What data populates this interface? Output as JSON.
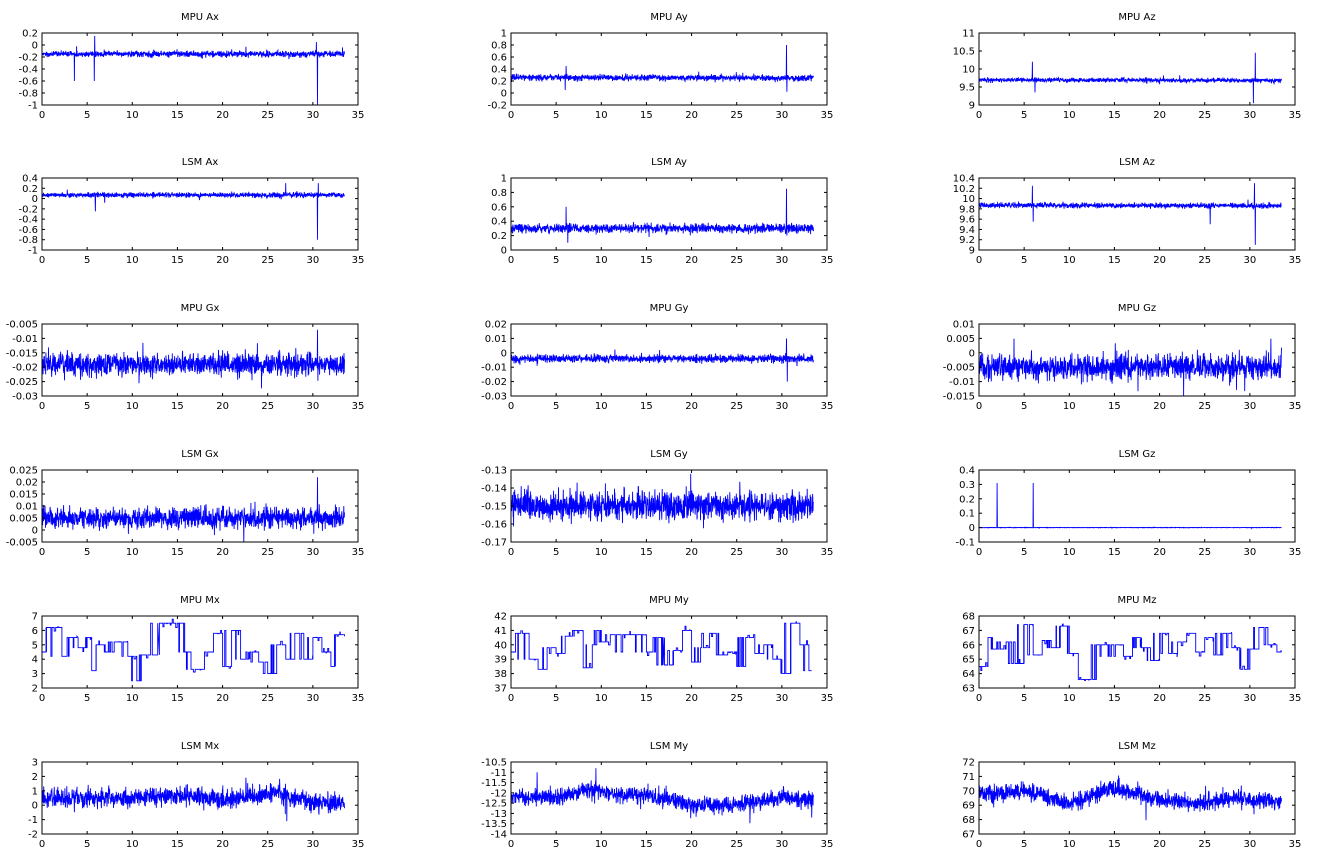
{
  "colors": {
    "series": "#0000ff",
    "axis": "#000000"
  },
  "chart_data": [
    {
      "type": "line",
      "title": "MPU Ax",
      "xlim": [
        0,
        35
      ],
      "xticks": [
        0,
        5,
        10,
        15,
        20,
        25,
        30,
        35
      ],
      "ylim": [
        -1,
        0.2
      ],
      "yticks": [
        -1,
        -0.8,
        -0.6,
        -0.4,
        -0.2,
        0,
        0.2
      ],
      "kind": "noise",
      "x_end": 33.5,
      "baseline": [
        [
          0,
          -0.15
        ],
        [
          33.5,
          -0.15
        ]
      ],
      "noise": 0.035,
      "spikes": [
        [
          3.6,
          -0.6
        ],
        [
          5.8,
          -0.6
        ],
        [
          5.85,
          0.15
        ],
        [
          30.4,
          0.05
        ],
        [
          30.5,
          -1.0
        ]
      ]
    },
    {
      "type": "line",
      "title": "MPU Ay",
      "xlim": [
        0,
        35
      ],
      "xticks": [
        0,
        5,
        10,
        15,
        20,
        25,
        30,
        35
      ],
      "ylim": [
        -0.2,
        1
      ],
      "yticks": [
        -0.2,
        0,
        0.2,
        0.4,
        0.6,
        0.8,
        1
      ],
      "kind": "noise",
      "x_end": 33.5,
      "baseline": [
        [
          0,
          0.26
        ],
        [
          33.5,
          0.25
        ]
      ],
      "noise": 0.035,
      "spikes": [
        [
          6.0,
          0.05
        ],
        [
          6.1,
          0.45
        ],
        [
          30.5,
          0.8
        ],
        [
          30.55,
          0.02
        ]
      ]
    },
    {
      "type": "line",
      "title": "MPU Az",
      "xlim": [
        0,
        35
      ],
      "xticks": [
        0,
        5,
        10,
        15,
        20,
        25,
        30,
        35
      ],
      "ylim": [
        9,
        11
      ],
      "yticks": [
        9,
        9.5,
        10,
        10.5,
        11
      ],
      "kind": "noise",
      "x_end": 33.5,
      "baseline": [
        [
          0,
          9.7
        ],
        [
          33.5,
          9.68
        ]
      ],
      "noise": 0.04,
      "spikes": [
        [
          5.9,
          10.2
        ],
        [
          6.2,
          9.35
        ],
        [
          30.4,
          9.05
        ],
        [
          30.6,
          10.45
        ]
      ]
    },
    {
      "type": "line",
      "title": "LSM Ax",
      "xlim": [
        0,
        35
      ],
      "xticks": [
        0,
        5,
        10,
        15,
        20,
        25,
        30,
        35
      ],
      "ylim": [
        -1,
        0.4
      ],
      "yticks": [
        -1,
        -0.8,
        -0.6,
        -0.4,
        -0.2,
        0,
        0.2,
        0.4
      ],
      "kind": "noise",
      "x_end": 33.5,
      "baseline": [
        [
          0,
          0.07
        ],
        [
          33.5,
          0.07
        ]
      ],
      "noise": 0.035,
      "spikes": [
        [
          5.9,
          -0.25
        ],
        [
          27,
          0.3
        ],
        [
          30.5,
          -0.8
        ],
        [
          30.6,
          0.3
        ]
      ]
    },
    {
      "type": "line",
      "title": "LSM Ay",
      "xlim": [
        0,
        35
      ],
      "xticks": [
        0,
        5,
        10,
        15,
        20,
        25,
        30,
        35
      ],
      "ylim": [
        0,
        1
      ],
      "yticks": [
        0,
        0.2,
        0.4,
        0.6,
        0.8,
        1
      ],
      "kind": "noise",
      "x_end": 33.5,
      "baseline": [
        [
          0,
          0.3
        ],
        [
          33.5,
          0.3
        ]
      ],
      "noise": 0.045,
      "spikes": [
        [
          6.1,
          0.6
        ],
        [
          6.3,
          0.1
        ],
        [
          30.5,
          0.85
        ],
        [
          30.55,
          0.2
        ]
      ]
    },
    {
      "type": "line",
      "title": "LSM Az",
      "xlim": [
        0,
        35
      ],
      "xticks": [
        0,
        5,
        10,
        15,
        20,
        25,
        30,
        35
      ],
      "ylim": [
        9,
        10.4
      ],
      "yticks": [
        9,
        9.2,
        9.4,
        9.6,
        9.8,
        10,
        10.2,
        10.4
      ],
      "kind": "noise",
      "x_end": 33.5,
      "baseline": [
        [
          0,
          9.87
        ],
        [
          33.5,
          9.86
        ]
      ],
      "noise": 0.035,
      "spikes": [
        [
          5.9,
          10.25
        ],
        [
          6.0,
          9.55
        ],
        [
          25.6,
          9.5
        ],
        [
          30.5,
          10.3
        ],
        [
          30.6,
          9.1
        ]
      ]
    },
    {
      "type": "line",
      "title": "MPU Gx",
      "xlim": [
        0,
        35
      ],
      "xticks": [
        0,
        5,
        10,
        15,
        20,
        25,
        30,
        35
      ],
      "ylim": [
        -0.03,
        -0.005
      ],
      "yticks": [
        -0.03,
        -0.025,
        -0.02,
        -0.015,
        -0.01,
        -0.005
      ],
      "kind": "noise",
      "x_end": 33.5,
      "baseline": [
        [
          0,
          -0.019
        ],
        [
          33.5,
          -0.019
        ]
      ],
      "noise": 0.0028,
      "spikes": [
        [
          30.5,
          -0.007
        ]
      ]
    },
    {
      "type": "line",
      "title": "MPU Gy",
      "xlim": [
        0,
        35
      ],
      "xticks": [
        0,
        5,
        10,
        15,
        20,
        25,
        30,
        35
      ],
      "ylim": [
        -0.03,
        0.02
      ],
      "yticks": [
        -0.03,
        -0.02,
        -0.01,
        0,
        0.01,
        0.02
      ],
      "kind": "noise",
      "x_end": 33.5,
      "baseline": [
        [
          0,
          -0.004
        ],
        [
          33.5,
          -0.004
        ]
      ],
      "noise": 0.002,
      "spikes": [
        [
          30.5,
          0.01
        ],
        [
          30.6,
          -0.02
        ]
      ]
    },
    {
      "type": "line",
      "title": "MPU Gz",
      "xlim": [
        0,
        35
      ],
      "xticks": [
        0,
        5,
        10,
        15,
        20,
        25,
        30,
        35
      ],
      "ylim": [
        -0.015,
        0.01
      ],
      "yticks": [
        -0.015,
        -0.01,
        -0.005,
        0,
        0.005,
        0.01
      ],
      "kind": "noise",
      "x_end": 33.5,
      "baseline": [
        [
          0,
          -0.005
        ],
        [
          33.5,
          -0.005
        ]
      ],
      "noise": 0.003,
      "spikes": []
    },
    {
      "type": "line",
      "title": "LSM Gx",
      "xlim": [
        0,
        35
      ],
      "xticks": [
        0,
        5,
        10,
        15,
        20,
        25,
        30,
        35
      ],
      "ylim": [
        -0.005,
        0.025
      ],
      "yticks": [
        -0.005,
        0,
        0.005,
        0.01,
        0.015,
        0.02,
        0.025
      ],
      "kind": "noise",
      "x_end": 33.5,
      "baseline": [
        [
          0,
          0.005
        ],
        [
          33.5,
          0.005
        ]
      ],
      "noise": 0.003,
      "spikes": [
        [
          30.5,
          0.022
        ]
      ]
    },
    {
      "type": "line",
      "title": "LSM Gy",
      "xlim": [
        0,
        35
      ],
      "xticks": [
        0,
        5,
        10,
        15,
        20,
        25,
        30,
        35
      ],
      "ylim": [
        -0.17,
        -0.13
      ],
      "yticks": [
        -0.17,
        -0.16,
        -0.15,
        -0.14,
        -0.13
      ],
      "kind": "noise",
      "x_end": 33.5,
      "baseline": [
        [
          0,
          -0.15
        ],
        [
          33.5,
          -0.15
        ]
      ],
      "noise": 0.0055,
      "spikes": []
    },
    {
      "type": "line",
      "title": "LSM Gz",
      "xlim": [
        0,
        35
      ],
      "xticks": [
        0,
        5,
        10,
        15,
        20,
        25,
        30,
        35
      ],
      "ylim": [
        -0.1,
        0.4
      ],
      "yticks": [
        -0.1,
        0,
        0.1,
        0.2,
        0.3,
        0.4
      ],
      "kind": "noise",
      "x_end": 33.5,
      "baseline": [
        [
          0,
          0
        ],
        [
          33.5,
          0
        ]
      ],
      "noise": 0.001,
      "spikes": [
        [
          2.0,
          0.31
        ],
        [
          6.0,
          0.31
        ]
      ]
    },
    {
      "type": "line",
      "title": "MPU Mx",
      "xlim": [
        0,
        35
      ],
      "xticks": [
        0,
        5,
        10,
        15,
        20,
        25,
        30,
        35
      ],
      "ylim": [
        2,
        7
      ],
      "yticks": [
        2,
        3,
        4,
        5,
        6,
        7
      ],
      "kind": "steps",
      "steps": [
        [
          0,
          4.5
        ],
        [
          0.5,
          6.2
        ],
        [
          2.2,
          4.2
        ],
        [
          3,
          5.5
        ],
        [
          4,
          4.8
        ],
        [
          5,
          5.5
        ],
        [
          5.5,
          3.2
        ],
        [
          6,
          5
        ],
        [
          7,
          4.5
        ],
        [
          8,
          5.2
        ],
        [
          9.5,
          4.2
        ],
        [
          10.5,
          2.5
        ],
        [
          11,
          4.3
        ],
        [
          13,
          6.5
        ],
        [
          15.8,
          4.5
        ],
        [
          16.5,
          3.3
        ],
        [
          18,
          4.5
        ],
        [
          19,
          5.8
        ],
        [
          20,
          3.5
        ],
        [
          21,
          6
        ],
        [
          22,
          4
        ],
        [
          23,
          4.5
        ],
        [
          24,
          3.8
        ],
        [
          25,
          3.0
        ],
        [
          26,
          5
        ],
        [
          27,
          4
        ],
        [
          28,
          5.8
        ],
        [
          29,
          4
        ],
        [
          30,
          5.5
        ],
        [
          31,
          4.5
        ],
        [
          32,
          3.5
        ],
        [
          32.5,
          5.7
        ],
        [
          33.5,
          5.6
        ]
      ]
    },
    {
      "type": "line",
      "title": "MPU My",
      "xlim": [
        0,
        35
      ],
      "xticks": [
        0,
        5,
        10,
        15,
        20,
        25,
        30,
        35
      ],
      "ylim": [
        37,
        42
      ],
      "yticks": [
        37,
        38,
        39,
        40,
        41,
        42
      ],
      "kind": "steps",
      "steps": [
        [
          0,
          39.5
        ],
        [
          0.5,
          40.8
        ],
        [
          2,
          39
        ],
        [
          3,
          38.3
        ],
        [
          4,
          39.8
        ],
        [
          5,
          39.4
        ],
        [
          6,
          40.6
        ],
        [
          7,
          41
        ],
        [
          8,
          38.4
        ],
        [
          9,
          40
        ],
        [
          9.5,
          41
        ],
        [
          10,
          40.2
        ],
        [
          11,
          40.7
        ],
        [
          15,
          39.5
        ],
        [
          16,
          40.5
        ],
        [
          17,
          38.6
        ],
        [
          18,
          39.6
        ],
        [
          19,
          41
        ],
        [
          20,
          38.8
        ],
        [
          21,
          39.8
        ],
        [
          22,
          40.8
        ],
        [
          23,
          39.3
        ],
        [
          24,
          39.5
        ],
        [
          25,
          38.5
        ],
        [
          26,
          40.5
        ],
        [
          27,
          39.4
        ],
        [
          28,
          40
        ],
        [
          29,
          39
        ],
        [
          30,
          38
        ],
        [
          31,
          41.5
        ],
        [
          32,
          40
        ],
        [
          33,
          38.2
        ],
        [
          33.3,
          38.2
        ]
      ]
    },
    {
      "type": "line",
      "title": "MPU Mz",
      "xlim": [
        0,
        35
      ],
      "xticks": [
        0,
        5,
        10,
        15,
        20,
        25,
        30,
        35
      ],
      "ylim": [
        63,
        68
      ],
      "yticks": [
        63,
        64,
        65,
        66,
        67,
        68
      ],
      "kind": "steps",
      "steps": [
        [
          0,
          64.5
        ],
        [
          1,
          66.5
        ],
        [
          1.5,
          65.7
        ],
        [
          3,
          66.2
        ],
        [
          4,
          64.7
        ],
        [
          5,
          67.4
        ],
        [
          6,
          65.3
        ],
        [
          7,
          66.3
        ],
        [
          8,
          65.8
        ],
        [
          9,
          67.3
        ],
        [
          10,
          65.4
        ],
        [
          11,
          63.6
        ],
        [
          13,
          66
        ],
        [
          16,
          65.2
        ],
        [
          17,
          66.5
        ],
        [
          18,
          65.8
        ],
        [
          19,
          64.9
        ],
        [
          20,
          66.8
        ],
        [
          21,
          65.4
        ],
        [
          22,
          66.2
        ],
        [
          23,
          66.8
        ],
        [
          24,
          65.5
        ],
        [
          25,
          66.5
        ],
        [
          26,
          65.3
        ],
        [
          27,
          66.8
        ],
        [
          28,
          65.8
        ],
        [
          29,
          64.3
        ],
        [
          30,
          65.7
        ],
        [
          31,
          67.2
        ],
        [
          32,
          66
        ],
        [
          33,
          65.5
        ],
        [
          33.5,
          65.5
        ]
      ]
    },
    {
      "type": "line",
      "title": "LSM Mx",
      "xlim": [
        0,
        35
      ],
      "xticks": [
        0,
        5,
        10,
        15,
        20,
        25,
        30,
        35
      ],
      "ylim": [
        -2,
        3
      ],
      "yticks": [
        -2,
        -1,
        0,
        1,
        2,
        3
      ],
      "kind": "noise",
      "x_end": 33.5,
      "baseline": [
        [
          0,
          0.5
        ],
        [
          10,
          0.5
        ],
        [
          15,
          0.7
        ],
        [
          20,
          0.4
        ],
        [
          26,
          0.9
        ],
        [
          30,
          0.1
        ],
        [
          33.5,
          0.2
        ]
      ],
      "noise": 0.45,
      "spikes": []
    },
    {
      "type": "line",
      "title": "LSM My",
      "xlim": [
        0,
        35
      ],
      "xticks": [
        0,
        5,
        10,
        15,
        20,
        25,
        30,
        35
      ],
      "ylim": [
        -14,
        -10.5
      ],
      "yticks": [
        -14,
        -13.5,
        -13,
        -12.5,
        -12,
        -11.5,
        -11,
        -10.5
      ],
      "kind": "noise",
      "x_end": 33.5,
      "baseline": [
        [
          0,
          -12.2
        ],
        [
          5,
          -12.2
        ],
        [
          9,
          -11.8
        ],
        [
          12,
          -12.1
        ],
        [
          15,
          -12.1
        ],
        [
          20,
          -12.6
        ],
        [
          25,
          -12.6
        ],
        [
          30,
          -12.2
        ],
        [
          33.5,
          -12.3
        ]
      ],
      "noise": 0.28,
      "spikes": [
        [
          9.4,
          -10.8
        ],
        [
          2.9,
          -11.0
        ]
      ]
    },
    {
      "type": "line",
      "title": "LSM Mz",
      "xlim": [
        0,
        35
      ],
      "xticks": [
        0,
        5,
        10,
        15,
        20,
        25,
        30,
        35
      ],
      "ylim": [
        67,
        72
      ],
      "yticks": [
        67,
        68,
        69,
        70,
        71,
        72
      ],
      "kind": "noise",
      "x_end": 33.5,
      "baseline": [
        [
          0,
          69.8
        ],
        [
          5,
          70
        ],
        [
          10,
          69.1
        ],
        [
          15,
          70.2
        ],
        [
          20,
          69.4
        ],
        [
          24,
          69.1
        ],
        [
          28,
          69.5
        ],
        [
          33.5,
          69.3
        ]
      ],
      "noise": 0.4,
      "spikes": []
    }
  ]
}
